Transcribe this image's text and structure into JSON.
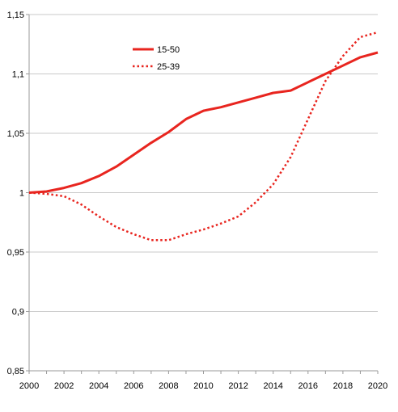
{
  "chart_data": {
    "type": "line",
    "title": "",
    "xlabel": "",
    "ylabel": "",
    "xlim": [
      2000,
      2020
    ],
    "ylim": [
      0.85,
      1.15
    ],
    "x_ticks": [
      2000,
      2002,
      2004,
      2006,
      2008,
      2010,
      2012,
      2014,
      2016,
      2018,
      2020
    ],
    "x_tick_labels": [
      "2000",
      "2002",
      "2004",
      "2006",
      "2008",
      "2010",
      "2012",
      "2014",
      "2016",
      "2018",
      "2020"
    ],
    "y_ticks": [
      0.85,
      0.9,
      0.95,
      1.0,
      1.05,
      1.1,
      1.15
    ],
    "y_tick_labels": [
      "0,85",
      "0,9",
      "0,95",
      "1",
      "1,05",
      "1,1",
      "1,15"
    ],
    "grid": "horizontal",
    "legend_position": "top-left",
    "x": [
      2000,
      2001,
      2002,
      2003,
      2004,
      2005,
      2006,
      2007,
      2008,
      2009,
      2010,
      2011,
      2012,
      2013,
      2014,
      2015,
      2016,
      2017,
      2018,
      2019,
      2020
    ],
    "series": [
      {
        "name": "15-50",
        "style": "solid",
        "color": "#e8251f",
        "values": [
          1.0,
          1.001,
          1.004,
          1.008,
          1.014,
          1.022,
          1.032,
          1.042,
          1.051,
          1.062,
          1.069,
          1.072,
          1.076,
          1.08,
          1.084,
          1.086,
          1.093,
          1.1,
          1.107,
          1.114,
          1.118
        ]
      },
      {
        "name": "25-39",
        "style": "dotted",
        "color": "#e8251f",
        "values": [
          1.0,
          0.999,
          0.997,
          0.99,
          0.98,
          0.971,
          0.965,
          0.96,
          0.96,
          0.965,
          0.969,
          0.974,
          0.98,
          0.992,
          1.007,
          1.03,
          1.062,
          1.094,
          1.115,
          1.131,
          1.135
        ]
      }
    ]
  }
}
